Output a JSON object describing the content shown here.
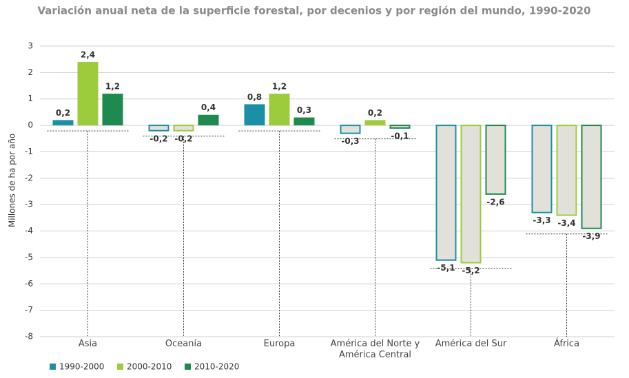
{
  "chart_data": {
    "type": "bar",
    "title": "Variación anual neta de la superficie forestal, por decenios y por región del mundo, 1990-2020",
    "y_label": "Millones de ha por año",
    "categories": [
      "Asia",
      "Oceanía",
      "Europa",
      "América del Norte y América Central",
      "América del Sur",
      "África"
    ],
    "series": [
      {
        "name": "1990-2000",
        "color": "#1b8fa6",
        "values": [
          0.2,
          -0.2,
          0.8,
          -0.3,
          -5.1,
          -3.3
        ],
        "value_labels": [
          "0,2",
          "-0,2",
          "0,8",
          "-0,3",
          "-5,1",
          "-3,3"
        ]
      },
      {
        "name": "2000-2010",
        "color": "#9ccc3c",
        "values": [
          2.4,
          -0.2,
          1.2,
          0.2,
          -5.2,
          -3.4
        ],
        "value_labels": [
          "2,4",
          "-0,2",
          "1,2",
          "0,2",
          "-5,2",
          "-3,4"
        ]
      },
      {
        "name": "2010-2020",
        "color": "#1f8a4f",
        "values": [
          1.2,
          0.4,
          0.3,
          -0.1,
          -2.6,
          -3.9
        ],
        "value_labels": [
          "1,2",
          "0,4",
          "0,3",
          "-0,1",
          "-2,6",
          "-3,9"
        ]
      }
    ],
    "negative_fill": "#e1e0d9",
    "ylim": [
      -8,
      3
    ],
    "yticks": [
      3,
      2,
      1,
      0,
      -1,
      -2,
      -3,
      -4,
      -5,
      -6,
      -7,
      -8
    ],
    "grid": true
  }
}
